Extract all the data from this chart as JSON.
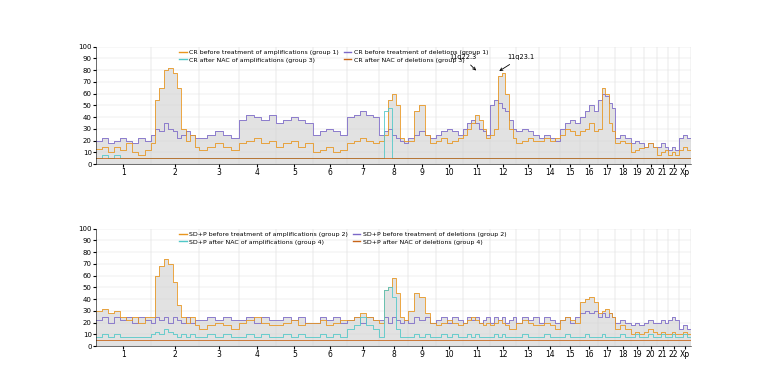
{
  "chromosomes": [
    "1",
    "2",
    "3",
    "4",
    "5",
    "6",
    "7",
    "8",
    "9",
    "10",
    "11",
    "12",
    "13",
    "14",
    "15",
    "16",
    "17",
    "18",
    "19",
    "20",
    "21",
    "22",
    "Xp"
  ],
  "color_amp_before": "#e8951e",
  "color_del_before": "#7b68c8",
  "color_amp_after": "#50c8c8",
  "color_del_after": "#c86418",
  "top_legend": [
    [
      "CR before treatment of amplifications (group 1)",
      "#e8951e"
    ],
    [
      "CR after NAC of amplifications (group 3)",
      "#50c8c8"
    ],
    [
      "CR before treatment of deletions (group 1)",
      "#7b68c8"
    ],
    [
      "CR after NAC of deletions (group 3)",
      "#c86418"
    ]
  ],
  "bot_legend": [
    [
      "SD+P before treatment of amplifications (group 2)",
      "#e8951e"
    ],
    [
      "SD+P after NAC of amplifications (group 4)",
      "#50c8c8"
    ],
    [
      "SD+P before treatment of deletions (group 2)",
      "#7b68c8"
    ],
    [
      "SD+P after NAC of deletions (group 4)",
      "#c86418"
    ]
  ],
  "fill_color": "#d0d0d0",
  "fill_alpha": 0.6
}
